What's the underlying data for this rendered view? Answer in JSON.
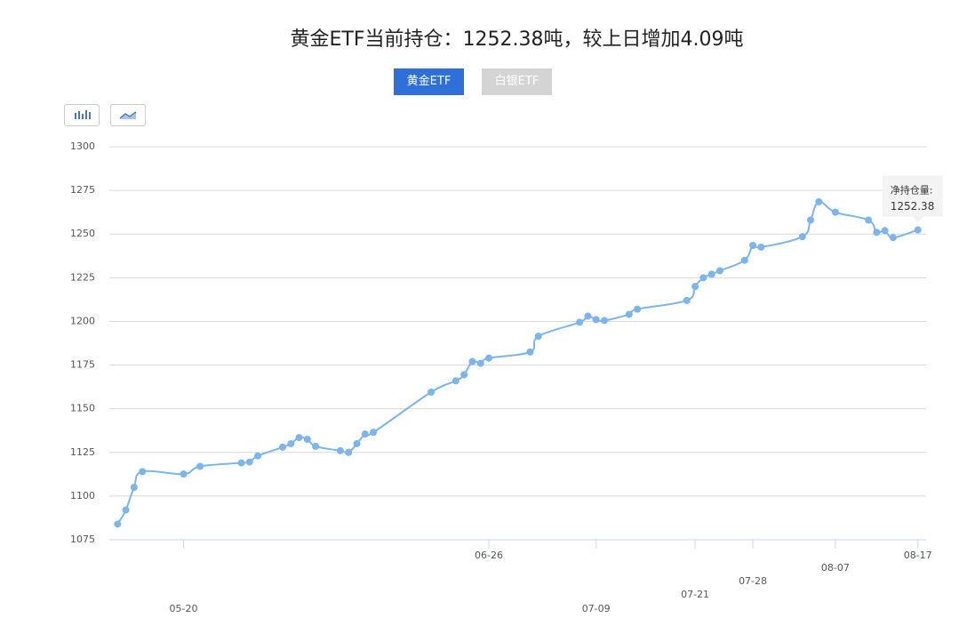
{
  "chart_data": {
    "type": "line",
    "title": "黄金ETF当前持仓：1252.38吨，较上日增加4.09吨",
    "tabs": [
      "黄金ETF",
      "白银ETF"
    ],
    "x": [
      "05-12",
      "05-13",
      "05-14",
      "05-15",
      "05-20",
      "05-22",
      "05-27",
      "05-28",
      "05-29",
      "06-01",
      "06-02",
      "06-03",
      "06-04",
      "06-05",
      "06-08",
      "06-09",
      "06-10",
      "06-11",
      "06-12",
      "06-19",
      "06-22",
      "06-23",
      "06-24",
      "06-25",
      "06-26",
      "07-01",
      "07-02",
      "07-07",
      "07-08",
      "07-09",
      "07-10",
      "07-13",
      "07-14",
      "07-20",
      "07-21",
      "07-22",
      "07-23",
      "07-24",
      "07-27",
      "07-28",
      "07-29",
      "08-03",
      "08-04",
      "08-05",
      "08-07",
      "08-11",
      "08-12",
      "08-13",
      "08-14",
      "08-17"
    ],
    "series": [
      {
        "color": "#7cb5ec",
        "values": [
          1084,
          1092,
          1105,
          1114,
          1112.6,
          1117,
          1119,
          1119.5,
          1123,
          1128,
          1130,
          1133.5,
          1132.5,
          1128.5,
          1126,
          1125,
          1130,
          1135.5,
          1136.5,
          1159.5,
          1166,
          1169.5,
          1177,
          1176,
          1179,
          1182.5,
          1191.5,
          1199.5,
          1203,
          1201,
          1200.5,
          1204,
          1207,
          1212,
          1220,
          1225,
          1227,
          1229,
          1235,
          1243.5,
          1242.5,
          1248.5,
          1258,
          1268.5,
          1262.5,
          1258,
          1251,
          1252,
          1248,
          1252.38
        ]
      }
    ],
    "tooltip_label": "净持仓量:",
    "xlim": [
      "05-11",
      "08-18"
    ],
    "xticks": [
      "05-20",
      "06-26",
      "07-09",
      "07-21",
      "07-28",
      "08-07",
      "08-17"
    ],
    "ylim": [
      1075,
      1300
    ],
    "yticks": [
      1075,
      1100,
      1125,
      1150,
      1175,
      1200,
      1225,
      1250,
      1275,
      1300
    ],
    "grid": true
  }
}
